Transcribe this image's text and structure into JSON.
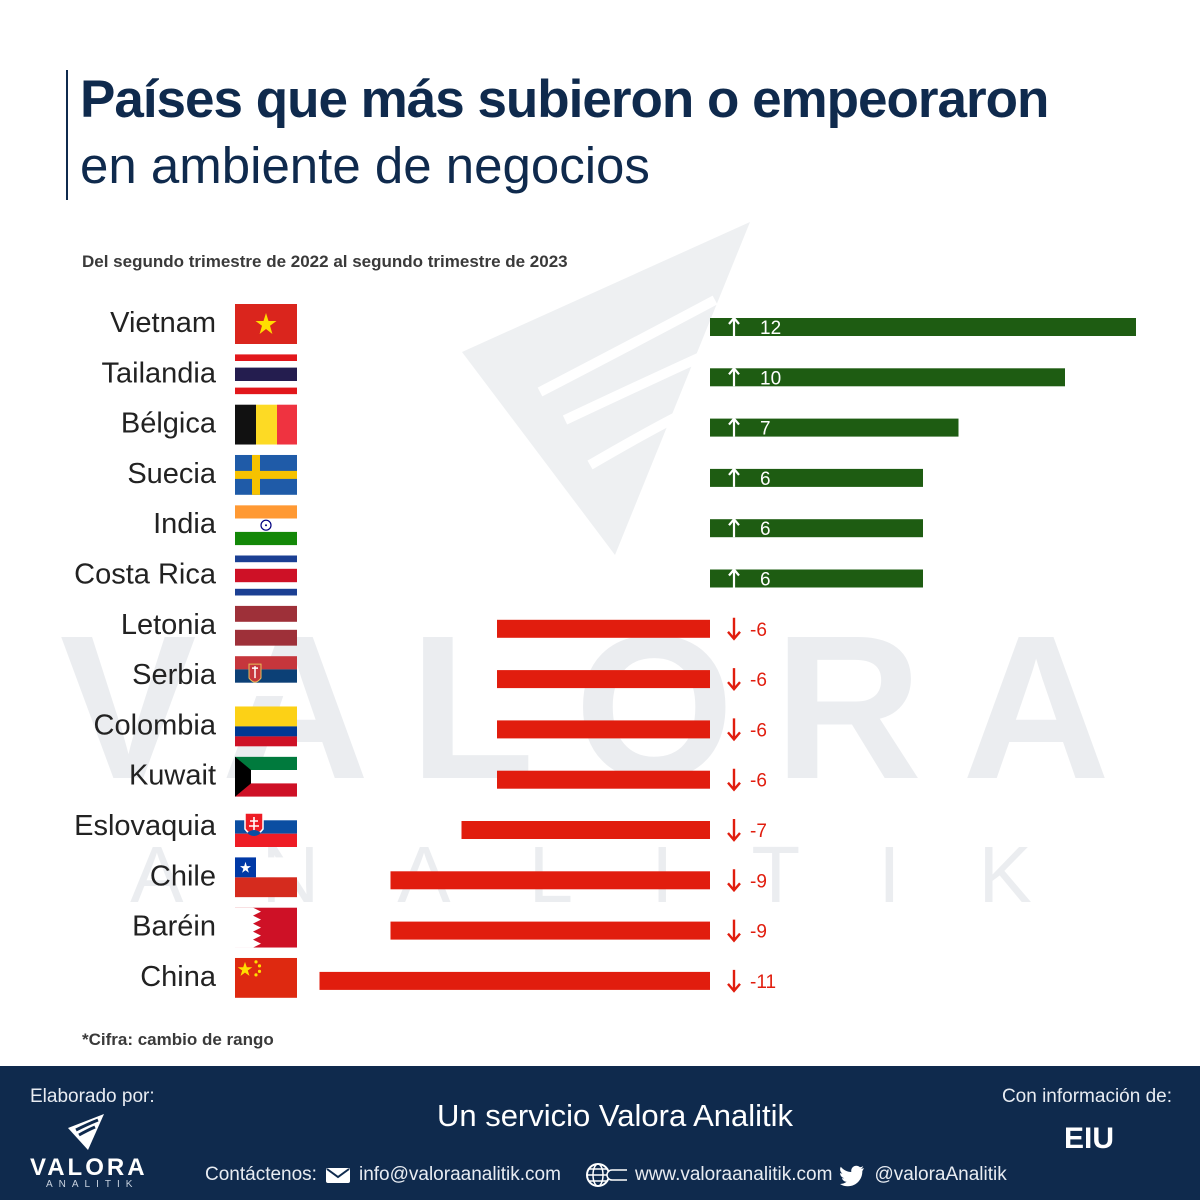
{
  "header": {
    "title_bold": "Países que más subieron o empeoraron",
    "title_light": "en ambiente de negocios",
    "subtitle": "Del segundo trimestre de 2022 al segundo trimestre de 2023"
  },
  "watermark": {
    "text": "VALORA",
    "subtext": "ANALITIK"
  },
  "chart_data": {
    "type": "bar",
    "orientation": "horizontal-diverging",
    "title": "Países que más subieron o empeoraron en ambiente de negocios",
    "subtitle": "Del segundo trimestre de 2022 al segundo trimestre de 2023",
    "categories": [
      "Vietnam",
      "Tailandia",
      "Bélgica",
      "Suecia",
      "India",
      "Costa Rica",
      "Letonia",
      "Serbia",
      "Colombia",
      "Kuwait",
      "Eslovaquia",
      "Chile",
      "Baréin",
      "China"
    ],
    "values": [
      12,
      10,
      7,
      6,
      6,
      6,
      -6,
      -6,
      -6,
      -6,
      -7,
      -9,
      -9,
      -11
    ],
    "value_labels": [
      "12",
      "10",
      "7",
      "6",
      "6",
      "6",
      "-6",
      "-6",
      "-6",
      "-6",
      "-7",
      "-9",
      "-9",
      "-11"
    ],
    "xlim": [
      -11,
      12
    ],
    "positive_color": "#1e5c12",
    "negative_color": "#e11d0e",
    "xlabel": "",
    "ylabel": ""
  },
  "flags": [
    {
      "name": "vietnam-flag",
      "country": "Vietnam"
    },
    {
      "name": "tailandia-flag",
      "country": "Tailandia"
    },
    {
      "name": "belgica-flag",
      "country": "Bélgica"
    },
    {
      "name": "suecia-flag",
      "country": "Suecia"
    },
    {
      "name": "india-flag",
      "country": "India"
    },
    {
      "name": "costa-rica-flag",
      "country": "Costa Rica"
    },
    {
      "name": "letonia-flag",
      "country": "Letonia"
    },
    {
      "name": "serbia-flag",
      "country": "Serbia"
    },
    {
      "name": "colombia-flag",
      "country": "Colombia"
    },
    {
      "name": "kuwait-flag",
      "country": "Kuwait"
    },
    {
      "name": "eslovaquia-flag",
      "country": "Eslovaquia"
    },
    {
      "name": "chile-flag",
      "country": "Chile"
    },
    {
      "name": "barein-flag",
      "country": "Baréin"
    },
    {
      "name": "china-flag",
      "country": "China"
    }
  ],
  "note": "*Cifra: cambio de rango",
  "footer": {
    "made_by_label": "Elaborado por:",
    "logo_text": "VALORA",
    "logo_sub": "ANALITIK",
    "service": "Un servicio Valora Analitik",
    "contact_label": "Contáctenos:",
    "email": "info@valoraanalitik.com",
    "website": "www.valoraanalitik.com",
    "twitter": "@valoraAnalitik",
    "source_label": "Con información de:",
    "source": "EIU"
  },
  "colors": {
    "navy": "#0f2a4d",
    "green": "#1e5c12",
    "red": "#e11d0e"
  }
}
